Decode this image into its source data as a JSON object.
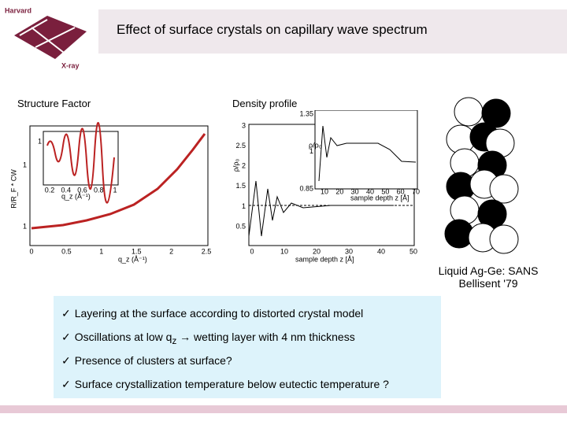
{
  "header": {
    "logo_top": "Harvard",
    "logo_bottom": "X-ray",
    "title": "Effect of surface crystals on capillary wave spectrum"
  },
  "structure_factor": {
    "label": "Structure Factor",
    "y_label": "R/R_F * CW",
    "x_label": "q_z (Å⁻¹)",
    "xticks": [
      "0",
      "0.5",
      "1",
      "1.5",
      "2",
      "2.5"
    ],
    "yticks": [
      "1",
      "1"
    ],
    "inset": {
      "xticks": [
        "0.2",
        "0.4",
        "0.6",
        "0.8",
        "1"
      ],
      "x_label": "q_z (Å⁻¹)",
      "yticks": [
        "1"
      ]
    }
  },
  "density_profile": {
    "label": "Density profile",
    "y_label": "ρ/ρ₀",
    "x_label": "sample depth z [Å]",
    "xticks": [
      "0",
      "10",
      "20",
      "30",
      "40",
      "50"
    ],
    "yticks": [
      "3",
      "2.5",
      "2",
      "1.5",
      "1",
      "0.5"
    ],
    "inset": {
      "xticks": [
        "10",
        "20",
        "30",
        "40",
        "50",
        "60",
        "70"
      ],
      "yticks": [
        "1.35",
        "1",
        "0.85"
      ],
      "x_label": "sample depth z [Å]",
      "y_label": "ρ/ρ₀"
    }
  },
  "image_caption": [
    "Liquid Ag-Ge: SANS",
    "Bellisent '79"
  ],
  "bullets": {
    "check": "✓",
    "items": [
      [
        "Layering at the surface according to distorted crystal model"
      ],
      [
        "Oscillations at low q",
        "z",
        " → wetting layer with 4 nm thickness"
      ],
      [
        "Presence of clusters at surface?"
      ],
      [
        "Surface crystallization temperature below eutectic temperature ?"
      ]
    ]
  }
}
